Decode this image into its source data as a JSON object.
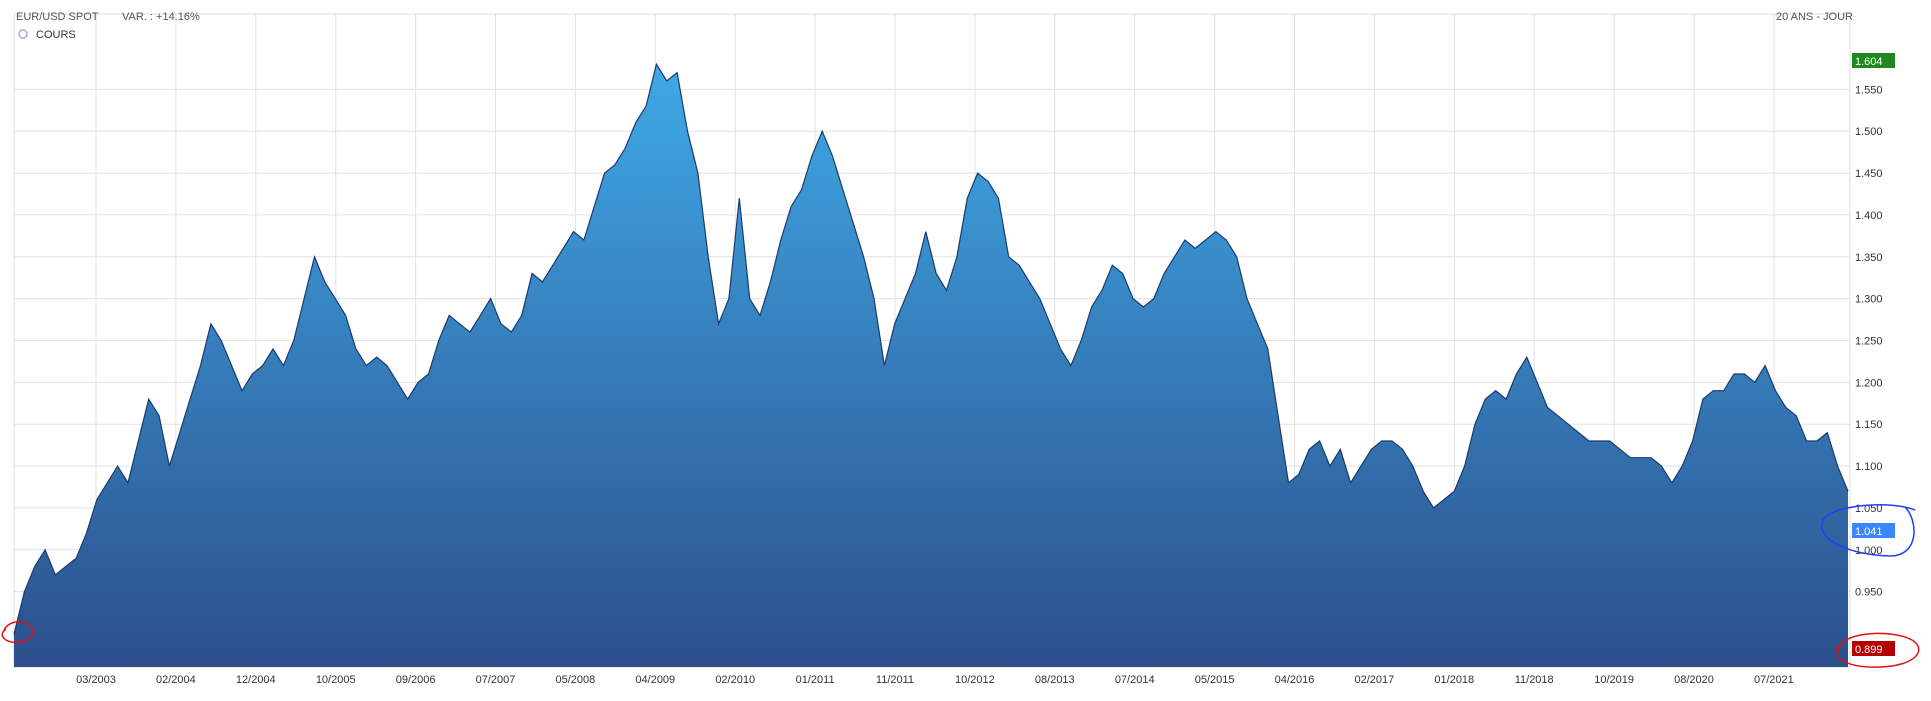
{
  "header": {
    "instrument": "EUR/USD SPOT",
    "variation": "VAR. : +14.16%",
    "period": "20 ANS - JOUR",
    "series_label": "COURS"
  },
  "chart_data": {
    "type": "area",
    "title": "EUR/USD SPOT",
    "xlabel": "",
    "ylabel": "",
    "ylim": [
      0.86,
      1.64
    ],
    "y_ticks": [
      0.95,
      1.0,
      1.05,
      1.1,
      1.15,
      1.2,
      1.25,
      1.3,
      1.35,
      1.4,
      1.45,
      1.5,
      1.55
    ],
    "y_tick_labels": [
      "0.950",
      "1.000",
      "1.050",
      "1.100",
      "1.150",
      "1.200",
      "1.250",
      "1.300",
      "1.350",
      "1.400",
      "1.450",
      "1.500",
      "1.550"
    ],
    "x_tick_labels": [
      "03/2003",
      "02/2004",
      "12/2004",
      "10/2005",
      "09/2006",
      "07/2007",
      "05/2008",
      "04/2009",
      "02/2010",
      "01/2011",
      "11/2011",
      "10/2012",
      "08/2013",
      "07/2014",
      "05/2015",
      "04/2016",
      "02/2017",
      "01/2018",
      "11/2018",
      "10/2019",
      "08/2020",
      "07/2021"
    ],
    "grid": true,
    "series": [
      {
        "values": [
          0.899,
          0.95,
          0.98,
          1.0,
          0.97,
          0.98,
          0.99,
          1.02,
          1.06,
          1.08,
          1.1,
          1.08,
          1.13,
          1.18,
          1.16,
          1.1,
          1.14,
          1.18,
          1.22,
          1.27,
          1.25,
          1.22,
          1.19,
          1.21,
          1.22,
          1.24,
          1.22,
          1.25,
          1.3,
          1.35,
          1.32,
          1.3,
          1.28,
          1.24,
          1.22,
          1.23,
          1.22,
          1.2,
          1.18,
          1.2,
          1.21,
          1.25,
          1.28,
          1.27,
          1.26,
          1.28,
          1.3,
          1.27,
          1.26,
          1.28,
          1.33,
          1.32,
          1.34,
          1.36,
          1.38,
          1.37,
          1.41,
          1.45,
          1.46,
          1.48,
          1.51,
          1.53,
          1.58,
          1.56,
          1.57,
          1.5,
          1.45,
          1.35,
          1.27,
          1.3,
          1.42,
          1.3,
          1.28,
          1.32,
          1.37,
          1.41,
          1.43,
          1.47,
          1.5,
          1.47,
          1.43,
          1.39,
          1.35,
          1.3,
          1.22,
          1.27,
          1.3,
          1.33,
          1.38,
          1.33,
          1.31,
          1.35,
          1.42,
          1.45,
          1.44,
          1.42,
          1.35,
          1.34,
          1.32,
          1.3,
          1.27,
          1.24,
          1.22,
          1.25,
          1.29,
          1.31,
          1.34,
          1.33,
          1.3,
          1.29,
          1.3,
          1.33,
          1.35,
          1.37,
          1.36,
          1.37,
          1.38,
          1.37,
          1.35,
          1.3,
          1.27,
          1.24,
          1.16,
          1.08,
          1.09,
          1.12,
          1.13,
          1.1,
          1.12,
          1.08,
          1.1,
          1.12,
          1.13,
          1.13,
          1.12,
          1.1,
          1.07,
          1.05,
          1.06,
          1.07,
          1.1,
          1.15,
          1.18,
          1.19,
          1.18,
          1.21,
          1.23,
          1.2,
          1.17,
          1.16,
          1.15,
          1.14,
          1.13,
          1.13,
          1.13,
          1.12,
          1.11,
          1.11,
          1.11,
          1.1,
          1.08,
          1.1,
          1.13,
          1.18,
          1.19,
          1.19,
          1.21,
          1.21,
          1.2,
          1.22,
          1.19,
          1.17,
          1.16,
          1.13,
          1.13,
          1.14,
          1.1,
          1.07
        ]
      }
    ]
  },
  "badges": {
    "high": "1.604",
    "current": "1.041",
    "low": "0.899"
  },
  "colors": {
    "area_top": "#3fa9e6",
    "area_bottom": "#2b4f8c",
    "line": "#1b3a6e",
    "grid": "#e2e2e2",
    "high_badge": "#1e8a1e",
    "current_badge": "#3a86ff",
    "low_badge": "#b30000",
    "annotation_red": "#e01010",
    "annotation_blue": "#1f3fff"
  }
}
